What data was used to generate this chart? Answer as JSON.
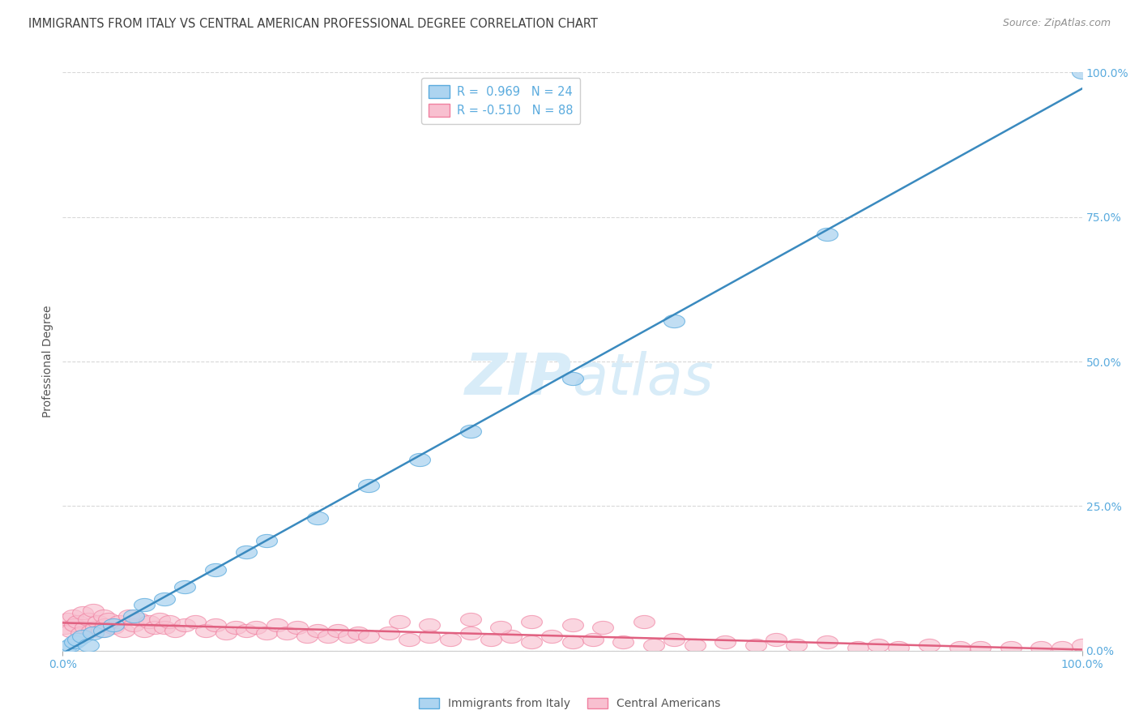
{
  "title": "IMMIGRANTS FROM ITALY VS CENTRAL AMERICAN PROFESSIONAL DEGREE CORRELATION CHART",
  "source": "Source: ZipAtlas.com",
  "ylabel": "Professional Degree",
  "ytick_values": [
    0,
    25,
    50,
    75,
    100
  ],
  "legend_entry_blue": "R =  0.969   N = 24",
  "legend_entry_pink": "R = -0.510   N = 88",
  "legend_labels_bottom": [
    "Immigrants from Italy",
    "Central Americans"
  ],
  "blue_color": "#5aabde",
  "pink_color": "#f080a0",
  "blue_fill": "#add4f0",
  "pink_fill": "#f8c0d0",
  "line_blue": "#3a8abf",
  "line_pink": "#e06080",
  "background_color": "#ffffff",
  "grid_color": "#c8c8c8",
  "title_color": "#404040",
  "source_color": "#909090",
  "watermark_color": "#d8ecf8",
  "blue_x": [
    0.3,
    0.8,
    1.2,
    1.5,
    2.0,
    2.5,
    3.0,
    4.0,
    5.0,
    7.0,
    8.0,
    10.0,
    12.0,
    15.0,
    18.0,
    20.0,
    25.0,
    30.0,
    35.0,
    40.0,
    50.0,
    60.0,
    75.0,
    100.0
  ],
  "blue_y": [
    0.5,
    1.0,
    1.5,
    2.0,
    2.5,
    1.0,
    3.0,
    3.5,
    4.5,
    6.0,
    8.0,
    9.0,
    11.0,
    14.0,
    17.0,
    19.0,
    23.0,
    28.5,
    33.0,
    38.0,
    47.0,
    57.0,
    72.0,
    100.0
  ],
  "pink_x": [
    0.2,
    0.5,
    0.8,
    1.0,
    1.2,
    1.5,
    1.8,
    2.0,
    2.2,
    2.5,
    2.8,
    3.0,
    3.2,
    3.5,
    3.8,
    4.0,
    4.2,
    4.5,
    5.0,
    5.5,
    6.0,
    6.5,
    7.0,
    7.5,
    8.0,
    8.5,
    9.0,
    9.5,
    10.0,
    10.5,
    11.0,
    12.0,
    13.0,
    14.0,
    15.0,
    16.0,
    17.0,
    18.0,
    19.0,
    20.0,
    21.0,
    22.0,
    23.0,
    24.0,
    25.0,
    26.0,
    27.0,
    28.0,
    29.0,
    30.0,
    32.0,
    34.0,
    36.0,
    38.0,
    40.0,
    42.0,
    44.0,
    46.0,
    48.0,
    50.0,
    52.0,
    55.0,
    58.0,
    60.0,
    62.0,
    65.0,
    68.0,
    70.0,
    72.0,
    75.0,
    78.0,
    80.0,
    82.0,
    85.0,
    88.0,
    90.0,
    93.0,
    96.0,
    98.0,
    100.0,
    33.0,
    36.0,
    40.0,
    43.0,
    46.0,
    50.0,
    53.0,
    57.0
  ],
  "pink_y": [
    4.0,
    5.5,
    3.5,
    6.0,
    4.5,
    5.0,
    3.0,
    6.5,
    4.0,
    5.5,
    3.5,
    7.0,
    4.0,
    5.0,
    3.5,
    6.0,
    4.5,
    5.5,
    4.0,
    5.0,
    3.5,
    6.0,
    4.5,
    5.5,
    3.5,
    5.0,
    4.0,
    5.5,
    4.0,
    5.0,
    3.5,
    4.5,
    5.0,
    3.5,
    4.5,
    3.0,
    4.0,
    3.5,
    4.0,
    3.0,
    4.5,
    3.0,
    4.0,
    2.5,
    3.5,
    2.5,
    3.5,
    2.5,
    3.0,
    2.5,
    3.0,
    2.0,
    2.5,
    2.0,
    3.0,
    2.0,
    2.5,
    1.5,
    2.5,
    1.5,
    2.0,
    1.5,
    1.0,
    2.0,
    1.0,
    1.5,
    1.0,
    2.0,
    1.0,
    1.5,
    0.5,
    1.0,
    0.5,
    1.0,
    0.5,
    0.5,
    0.5,
    0.5,
    0.5,
    1.0,
    5.0,
    4.5,
    5.5,
    4.0,
    5.0,
    4.5,
    4.0,
    5.0
  ]
}
